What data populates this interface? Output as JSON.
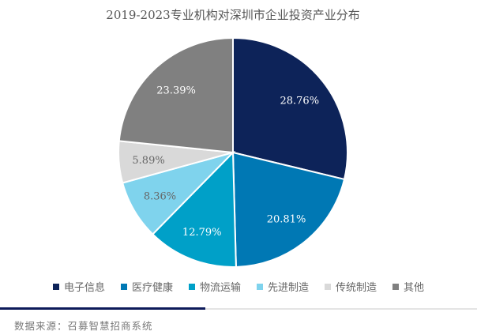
{
  "chart_data": {
    "type": "pie",
    "title": "2019-2023专业机构对深圳市企业投资产业分布",
    "categories": [
      "电子信息",
      "医疗健康",
      "物流运输",
      "先进制造",
      "传统制造",
      "其他"
    ],
    "values": [
      28.76,
      20.81,
      12.79,
      8.36,
      5.89,
      23.39
    ],
    "labels": [
      "28.76%",
      "20.81%",
      "12.79%",
      "8.36%",
      "5.89%",
      "23.39%"
    ],
    "colors": [
      "#0d2359",
      "#0078b4",
      "#00a0c8",
      "#7fd3ed",
      "#d9d9d9",
      "#808080"
    ],
    "label_colors": [
      "#ffffff",
      "#ffffff",
      "#ffffff",
      "#666666",
      "#666666",
      "#ffffff"
    ],
    "legend_position": "bottom",
    "start": "top, clockwise"
  },
  "footer": {
    "source": "数据来源：召募智慧招商系统"
  }
}
